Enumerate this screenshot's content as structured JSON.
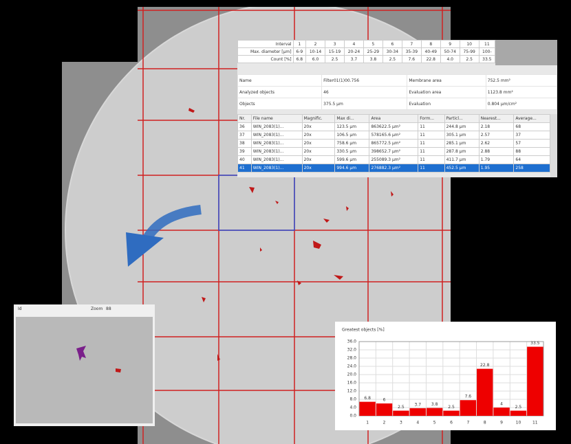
{
  "matrix": {
    "rows": [
      [
        "Interval",
        "1",
        "2",
        "3",
        "4",
        "5",
        "6",
        "7",
        "8",
        "9",
        "10",
        "11"
      ],
      [
        "Max. diameter [µm]",
        "6-9",
        "10-14",
        "15-19",
        "20-24",
        "25-29",
        "30-34",
        "35-39",
        "40-49",
        "50-74",
        "75-99",
        "100-"
      ],
      [
        "Count [%]",
        "6.8",
        "6.0",
        "2.5",
        "3.7",
        "3.8",
        "2.5",
        "7.6",
        "22.8",
        "4.0",
        "2.5",
        "33.5"
      ]
    ]
  },
  "info": {
    "rows": [
      [
        "Name",
        "Filter01(1)00.756",
        "Membrane area",
        "752.5 mm²"
      ],
      [
        "Analyzed objects",
        "46",
        "Evaluation area",
        "1123.8 mm²"
      ],
      [
        "Objects",
        "375.5 µm",
        "Evaluation",
        "0.804 µm/cm²"
      ]
    ]
  },
  "particles": {
    "columns": [
      "Nr.",
      "File name",
      "Magnific.",
      "Max di...",
      "Area",
      "Form...",
      "Particl...",
      "Nearest...",
      "Average..."
    ],
    "rows": [
      [
        "36",
        "WIN_2083(1)...",
        "20x",
        "123.5 µm",
        "863622.5 µm²",
        "11",
        "244.8 µm",
        "2.18",
        "68"
      ],
      [
        "37",
        "WIN_2083(1)...",
        "20x",
        "106.5 µm",
        "578165.6 µm²",
        "11",
        "305.1 µm",
        "2.57",
        "37"
      ],
      [
        "38",
        "WIN_2083(1)...",
        "20x",
        "758.6 µm",
        "865772.5 µm²",
        "11",
        "285.1 µm",
        "2.62",
        "57"
      ],
      [
        "39",
        "WIN_2083(1)...",
        "20x",
        "330.5 µm",
        "398652.7 µm²",
        "11",
        "287.8 µm",
        "2.88",
        "88"
      ],
      [
        "40",
        "WIN_2083(1)...",
        "20x",
        "599.6 µm",
        "255089.3 µm²",
        "11",
        "411.7 µm",
        "1.79",
        "64"
      ],
      [
        "41",
        "WIN_2083(1)...",
        "20x",
        "994.6 µm",
        "276882.3 µm²",
        "11",
        "452.5 µm",
        "1.95",
        "258"
      ]
    ]
  },
  "inset": {
    "title": "Id",
    "zoom_label": "Zoom",
    "zoom": "88"
  },
  "chart_data": {
    "type": "bar",
    "title": "Greatest objects [%]",
    "categories": [
      "1",
      "2",
      "3",
      "4",
      "5",
      "6",
      "7",
      "8",
      "9",
      "10",
      "11"
    ],
    "values": [
      6.8,
      6.0,
      2.5,
      3.7,
      3.8,
      2.5,
      7.6,
      22.8,
      4.0,
      2.5,
      33.5
    ],
    "color": "#ee0000",
    "grid": true,
    "ylim": [
      0,
      36
    ],
    "yticks": [
      {
        "value": 0,
        "label": "0.0"
      },
      {
        "value": 4,
        "label": "4.0"
      },
      {
        "value": 8,
        "label": "8.0"
      },
      {
        "value": 12,
        "label": "12.0"
      },
      {
        "value": 16,
        "label": "16.0"
      },
      {
        "value": 20,
        "label": "20.0"
      },
      {
        "value": 24,
        "label": "24.0"
      },
      {
        "value": 28,
        "label": "28.0"
      },
      {
        "value": 32,
        "label": "32.0"
      },
      {
        "value": 36,
        "label": "36.0"
      }
    ]
  }
}
